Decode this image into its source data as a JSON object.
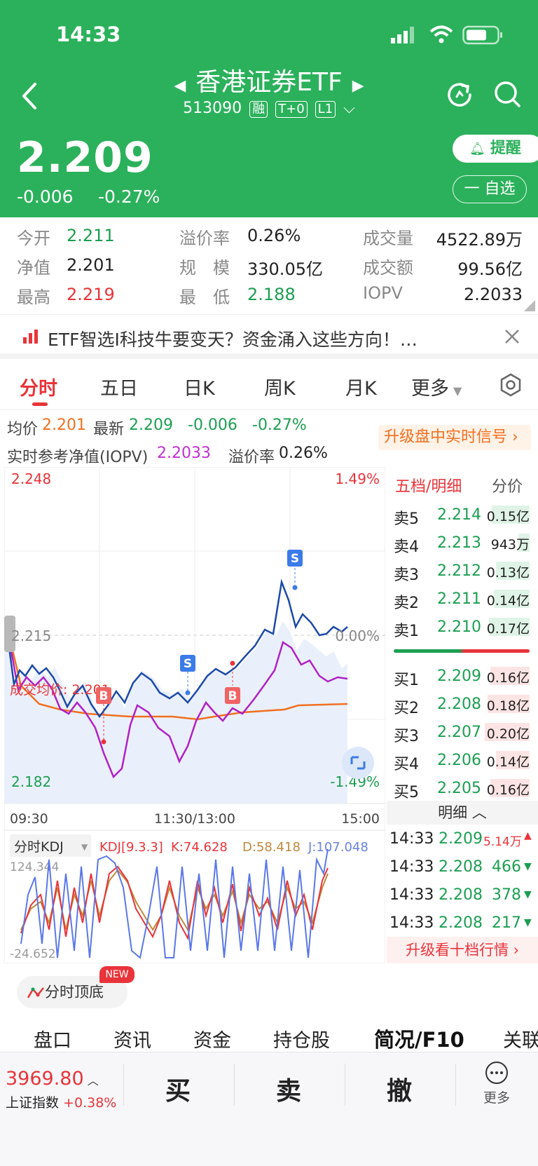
{
  "status_bar": {
    "time": "14:33"
  },
  "header": {
    "title": "香港证券ETF",
    "code": "513090",
    "tags": [
      "融",
      "T+0",
      "L1"
    ],
    "price": "2.209",
    "change": "-0.006",
    "change_pct": "-0.27%",
    "remind_label": "提醒",
    "watch_label": "一 自选"
  },
  "stats": {
    "open_label": "今开",
    "open": "2.211",
    "nav_label": "净值",
    "nav": "2.201",
    "high_label": "最高",
    "high": "2.219",
    "premium_label": "溢价率",
    "premium": "0.26%",
    "scale_label": "规　模",
    "scale": "330.05亿",
    "low_label": "最　低",
    "low": "2.188",
    "volume_label": "成交量",
    "volume": "4522.89万",
    "amount_label": "成交额",
    "amount": "99.56亿",
    "iopv_label": "IOPV",
    "iopv": "2.2033"
  },
  "banner": {
    "text": "ETF智选I科技牛要变天？资金涌入这些方向！…"
  },
  "tabs": [
    "分时",
    "五日",
    "日K",
    "周K",
    "月K",
    "更多"
  ],
  "info": {
    "avg_label": "均价",
    "avg": "2.201",
    "latest_label": "最新",
    "latest": "2.209",
    "chg": "-0.006",
    "chg_pct": "-0.27%",
    "iopv_label": "实时参考净值(IOPV)",
    "iopv": "2.2033",
    "premium_label": "溢价率",
    "premium": "0.26%",
    "upgrade": "升级盘中实时信号"
  },
  "chart": {
    "max_price": "2.248",
    "mid_price": "2.215",
    "min_price": "2.182",
    "max_pct": "1.49%",
    "mid_pct": "0.00%",
    "min_pct": "-1.49%",
    "avg_label": "成交均价: 2.201",
    "x_labels": [
      "09:30",
      "11:30/13:00",
      "15:00"
    ],
    "markers": [
      "B",
      "S",
      "B",
      "S"
    ]
  },
  "kdj": {
    "selector": "分时KDJ",
    "params": "KDJ[9.3.3]",
    "k": "K:74.628",
    "d": "D:58.418",
    "j": "J:107.048",
    "max": "124.344",
    "min": "-24.652"
  },
  "orderbook": {
    "title": "五档/明细",
    "alt": "分价",
    "asks": [
      {
        "label": "卖5",
        "price": "2.214",
        "vol": "0.15亿"
      },
      {
        "label": "卖4",
        "price": "2.213",
        "vol": "943万"
      },
      {
        "label": "卖3",
        "price": "2.212",
        "vol": "0.13亿"
      },
      {
        "label": "卖2",
        "price": "2.211",
        "vol": "0.14亿"
      },
      {
        "label": "卖1",
        "price": "2.210",
        "vol": "0.17亿"
      }
    ],
    "bids": [
      {
        "label": "买1",
        "price": "2.209",
        "vol": "0.16亿"
      },
      {
        "label": "买2",
        "price": "2.208",
        "vol": "0.18亿"
      },
      {
        "label": "买3",
        "price": "2.207",
        "vol": "0.20亿"
      },
      {
        "label": "买4",
        "price": "2.206",
        "vol": "0.14亿"
      },
      {
        "label": "买5",
        "price": "2.205",
        "vol": "0.16亿"
      }
    ],
    "detail_label": "明细",
    "trades": [
      {
        "time": "14:33",
        "price": "2.209",
        "vol": "5.14万",
        "dir": "up"
      },
      {
        "time": "14:33",
        "price": "2.208",
        "vol": "466",
        "dir": "down"
      },
      {
        "time": "14:33",
        "price": "2.208",
        "vol": "378",
        "dir": "down"
      },
      {
        "time": "14:33",
        "price": "2.208",
        "vol": "217",
        "dir": "down"
      }
    ],
    "upgrade": "升级看十档行情"
  },
  "feature": {
    "label": "分时顶底",
    "badge": "NEW"
  },
  "subtabs": [
    "盘口",
    "资讯",
    "资金",
    "持仓股",
    "简况/F10",
    "关联"
  ],
  "bottom": {
    "index_value": "3969.80",
    "index_name": "上证指数",
    "index_chg": "+0.38%",
    "buy": "买",
    "sell": "卖",
    "cancel": "撤",
    "more": "更多"
  },
  "colors": {
    "brand": "#2bb15b",
    "up": "#e8343a",
    "down": "#1c9e52",
    "iopv": "#c030d0",
    "avg": "#f07020",
    "price_line": "#1d4aa8"
  }
}
